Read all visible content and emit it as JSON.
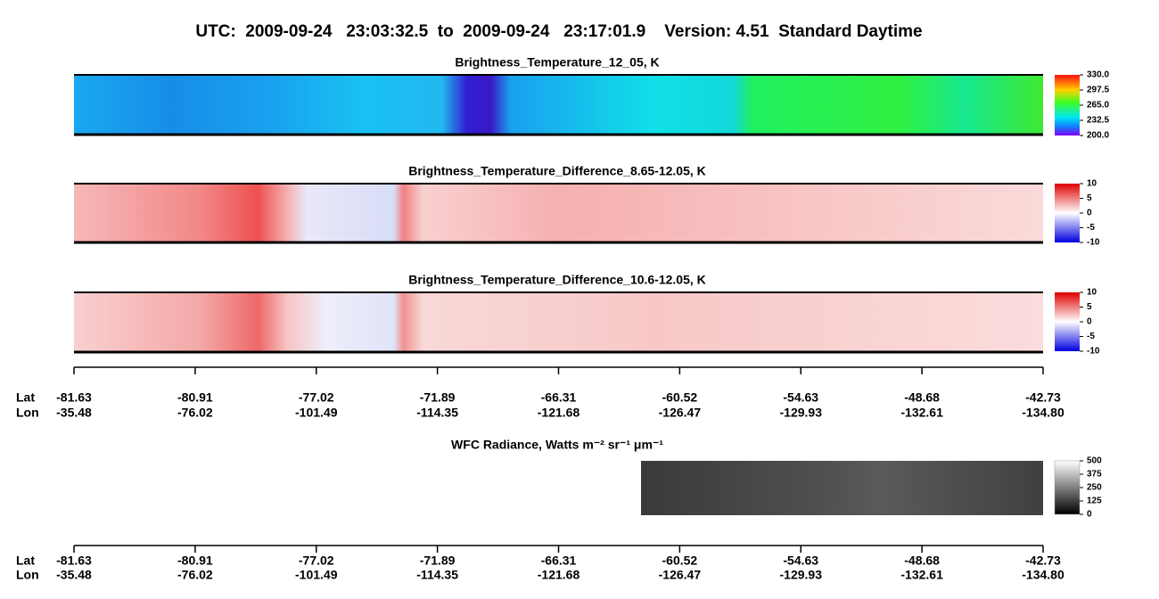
{
  "title": "UTC:  2009-09-24   23:03:32.5  to  2009-09-24   23:17:01.9    Version: 4.51  Standard Daytime",
  "panels": [
    {
      "title": "Brightness_Temperature_12_05, K",
      "colorbar": [
        "330.0",
        "297.5",
        "265.0",
        "232.5",
        "200.0"
      ]
    },
    {
      "title": "Brightness_Temperature_Difference_8.65-12.05, K",
      "colorbar": [
        "10",
        "5",
        "0",
        "-5",
        "-10"
      ]
    },
    {
      "title": "Brightness_Temperature_Difference_10.6-12.05, K",
      "colorbar": [
        "10",
        "5",
        "0",
        "-5",
        "-10"
      ]
    },
    {
      "title": "WFC Radiance, Watts m⁻² sr⁻¹ μm⁻¹",
      "colorbar": [
        "500",
        "375",
        "250",
        "125",
        "0"
      ]
    }
  ],
  "axes": [
    {
      "lat_label": "Lat",
      "lon_label": "Lon",
      "lat": [
        "-81.63",
        "-80.91",
        "-77.02",
        "-71.89",
        "-66.31",
        "-60.52",
        "-54.63",
        "-48.68",
        "-42.73"
      ],
      "lon": [
        "-35.48",
        "-76.02",
        "-101.49",
        "-114.35",
        "-121.68",
        "-126.47",
        "-129.93",
        "-132.61",
        "-134.80"
      ]
    },
    {
      "lat_label": "Lat",
      "lon_label": "Lon",
      "lat": [
        "-81.63",
        "-80.91",
        "-77.02",
        "-71.89",
        "-66.31",
        "-60.52",
        "-54.63",
        "-48.68",
        "-42.73"
      ],
      "lon": [
        "-35.48",
        "-76.02",
        "-101.49",
        "-114.35",
        "-121.68",
        "-126.47",
        "-129.93",
        "-132.61",
        "-134.80"
      ]
    }
  ]
}
